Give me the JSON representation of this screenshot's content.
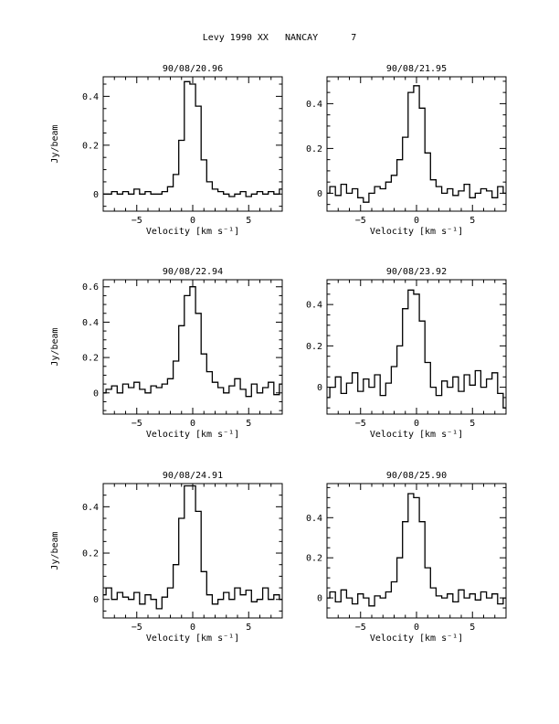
{
  "page_title": "Levy 1990 XX   NANCAY      7",
  "chart_data": [
    {
      "type": "line",
      "title": "90/08/20.96",
      "xlabel": "Velocity [km s⁻¹]",
      "ylabel": "Jy/beam",
      "xlim": [
        -8,
        8
      ],
      "ylim": [
        -0.07,
        0.48
      ],
      "xticks": [
        -5,
        0,
        5
      ],
      "yticks": [
        0,
        0.2,
        0.4
      ],
      "ytick_labels": [
        "0",
        "0.2",
        "0.4"
      ],
      "series": [
        {
          "x": [
            -8,
            -7.5,
            -7,
            -6.5,
            -6,
            -5.5,
            -5,
            -4.5,
            -4,
            -3.5,
            -3,
            -2.5,
            -2,
            -1.5,
            -1,
            -0.5,
            0,
            0.5,
            1,
            1.5,
            2,
            2.5,
            3,
            3.5,
            4,
            4.5,
            5,
            5.5,
            6,
            6.5,
            7,
            7.5,
            8
          ],
          "y": [
            0.0,
            0.0,
            0.01,
            0.0,
            0.01,
            0.0,
            0.02,
            0.0,
            0.01,
            0.0,
            0.0,
            0.01,
            0.03,
            0.08,
            0.22,
            0.46,
            0.45,
            0.36,
            0.14,
            0.05,
            0.02,
            0.01,
            0.0,
            -0.01,
            0.0,
            0.01,
            -0.01,
            0.0,
            0.01,
            0.0,
            0.01,
            0.0,
            0.02
          ]
        }
      ]
    },
    {
      "type": "line",
      "title": "90/08/21.95",
      "xlabel": "Velocity [km s⁻¹]",
      "ylabel": "",
      "xlim": [
        -8,
        8
      ],
      "ylim": [
        -0.08,
        0.52
      ],
      "xticks": [
        -5,
        0,
        5
      ],
      "yticks": [
        0,
        0.2,
        0.4
      ],
      "ytick_labels": [
        "0",
        "0.2",
        "0.4"
      ],
      "series": [
        {
          "x": [
            -8,
            -7.5,
            -7,
            -6.5,
            -6,
            -5.5,
            -5,
            -4.5,
            -4,
            -3.5,
            -3,
            -2.5,
            -2,
            -1.5,
            -1,
            -0.5,
            0,
            0.5,
            1,
            1.5,
            2,
            2.5,
            3,
            3.5,
            4,
            4.5,
            5,
            5.5,
            6,
            6.5,
            7,
            7.5,
            8
          ],
          "y": [
            0.0,
            0.03,
            -0.01,
            0.04,
            0.0,
            0.02,
            -0.02,
            -0.04,
            0.0,
            0.03,
            0.02,
            0.05,
            0.08,
            0.15,
            0.25,
            0.45,
            0.48,
            0.38,
            0.18,
            0.06,
            0.03,
            0.0,
            0.02,
            -0.01,
            0.01,
            0.04,
            -0.02,
            0.0,
            0.02,
            0.01,
            -0.02,
            0.03,
            0.0
          ]
        }
      ]
    },
    {
      "type": "line",
      "title": "90/08/22.94",
      "xlabel": "Velocity [km s⁻¹]",
      "ylabel": "Jy/beam",
      "xlim": [
        -8,
        8
      ],
      "ylim": [
        -0.12,
        0.64
      ],
      "xticks": [
        -5,
        0,
        5
      ],
      "yticks": [
        0,
        0.2,
        0.4,
        0.6
      ],
      "ytick_labels": [
        "0",
        "0.2",
        "0.4",
        "0.6"
      ],
      "series": [
        {
          "x": [
            -8,
            -7.5,
            -7,
            -6.5,
            -6,
            -5.5,
            -5,
            -4.5,
            -4,
            -3.5,
            -3,
            -2.5,
            -2,
            -1.5,
            -1,
            -0.5,
            0,
            0.5,
            1,
            1.5,
            2,
            2.5,
            3,
            3.5,
            4,
            4.5,
            5,
            5.5,
            6,
            6.5,
            7,
            7.5,
            8
          ],
          "y": [
            0.0,
            0.02,
            0.04,
            0.0,
            0.05,
            0.03,
            0.06,
            0.02,
            0.0,
            0.04,
            0.03,
            0.05,
            0.08,
            0.18,
            0.38,
            0.55,
            0.6,
            0.45,
            0.22,
            0.12,
            0.06,
            0.03,
            0.0,
            0.04,
            0.08,
            0.02,
            -0.02,
            0.05,
            0.0,
            0.03,
            0.06,
            -0.01,
            0.05
          ]
        }
      ]
    },
    {
      "type": "line",
      "title": "90/08/23.92",
      "xlabel": "Velocity [km s⁻¹]",
      "ylabel": "",
      "xlim": [
        -8,
        8
      ],
      "ylim": [
        -0.13,
        0.52
      ],
      "xticks": [
        -5,
        0,
        5
      ],
      "yticks": [
        0,
        0.2,
        0.4
      ],
      "ytick_labels": [
        "0",
        "0.2",
        "0.4"
      ],
      "series": [
        {
          "x": [
            -8,
            -7.5,
            -7,
            -6.5,
            -6,
            -5.5,
            -5,
            -4.5,
            -4,
            -3.5,
            -3,
            -2.5,
            -2,
            -1.5,
            -1,
            -0.5,
            0,
            0.5,
            1,
            1.5,
            2,
            2.5,
            3,
            3.5,
            4,
            4.5,
            5,
            5.5,
            6,
            6.5,
            7,
            7.5,
            8
          ],
          "y": [
            -0.05,
            0.0,
            0.05,
            -0.03,
            0.02,
            0.07,
            -0.02,
            0.04,
            0.0,
            0.06,
            -0.04,
            0.02,
            0.1,
            0.2,
            0.38,
            0.47,
            0.45,
            0.32,
            0.12,
            0.0,
            -0.04,
            0.03,
            0.0,
            0.05,
            -0.02,
            0.06,
            0.01,
            0.08,
            0.0,
            0.04,
            0.07,
            -0.03,
            -0.1
          ]
        }
      ]
    },
    {
      "type": "line",
      "title": "90/08/24.91",
      "xlabel": "Velocity [km s⁻¹]",
      "ylabel": "Jy/beam",
      "xlim": [
        -8,
        8
      ],
      "ylim": [
        -0.08,
        0.5
      ],
      "xticks": [
        -5,
        0,
        5
      ],
      "yticks": [
        0,
        0.2,
        0.4
      ],
      "ytick_labels": [
        "0",
        "0.2",
        "0.4"
      ],
      "series": [
        {
          "x": [
            -8,
            -7.5,
            -7,
            -6.5,
            -6,
            -5.5,
            -5,
            -4.5,
            -4,
            -3.5,
            -3,
            -2.5,
            -2,
            -1.5,
            -1,
            -0.5,
            0,
            0.5,
            1,
            1.5,
            2,
            2.5,
            3,
            3.5,
            4,
            4.5,
            5,
            5.5,
            6,
            6.5,
            7,
            7.5,
            8
          ],
          "y": [
            0.02,
            0.05,
            0.0,
            0.03,
            0.01,
            0.0,
            0.03,
            -0.02,
            0.02,
            0.0,
            -0.04,
            0.01,
            0.05,
            0.15,
            0.35,
            0.49,
            0.49,
            0.38,
            0.12,
            0.02,
            -0.02,
            0.0,
            0.03,
            0.0,
            0.05,
            0.02,
            0.04,
            -0.01,
            0.0,
            0.05,
            0.0,
            0.02,
            0.0
          ]
        }
      ]
    },
    {
      "type": "line",
      "title": "90/08/25.90",
      "xlabel": "Velocity [km s⁻¹]",
      "ylabel": "",
      "xlim": [
        -8,
        8
      ],
      "ylim": [
        -0.1,
        0.57
      ],
      "xticks": [
        -5,
        0,
        5
      ],
      "yticks": [
        0,
        0.2,
        0.4
      ],
      "ytick_labels": [
        "0",
        "0.2",
        "0.4"
      ],
      "series": [
        {
          "x": [
            -8,
            -7.5,
            -7,
            -6.5,
            -6,
            -5.5,
            -5,
            -4.5,
            -4,
            -3.5,
            -3,
            -2.5,
            -2,
            -1.5,
            -1,
            -0.5,
            0,
            0.5,
            1,
            1.5,
            2,
            2.5,
            3,
            3.5,
            4,
            4.5,
            5,
            5.5,
            6,
            6.5,
            7,
            7.5,
            8
          ],
          "y": [
            0.0,
            0.03,
            -0.02,
            0.04,
            0.0,
            -0.03,
            0.02,
            0.0,
            -0.04,
            0.01,
            0.0,
            0.03,
            0.08,
            0.2,
            0.38,
            0.52,
            0.5,
            0.38,
            0.15,
            0.05,
            0.01,
            0.0,
            0.02,
            -0.02,
            0.04,
            0.0,
            0.02,
            -0.01,
            0.03,
            0.0,
            0.02,
            -0.03,
            0.0
          ]
        }
      ]
    }
  ]
}
